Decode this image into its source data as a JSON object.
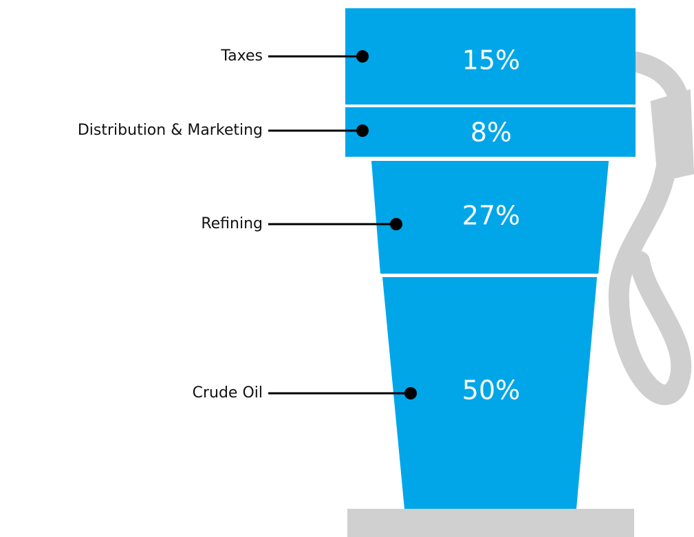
{
  "chart_data": {
    "type": "funnel",
    "categories": [
      "Taxes",
      "Distribution & Marketing",
      "Refining",
      "Crude Oil"
    ],
    "values": [
      15,
      8,
      27,
      50
    ],
    "value_labels": [
      "15%",
      "8%",
      "27%",
      "50%"
    ],
    "color": "#00a6e8"
  }
}
